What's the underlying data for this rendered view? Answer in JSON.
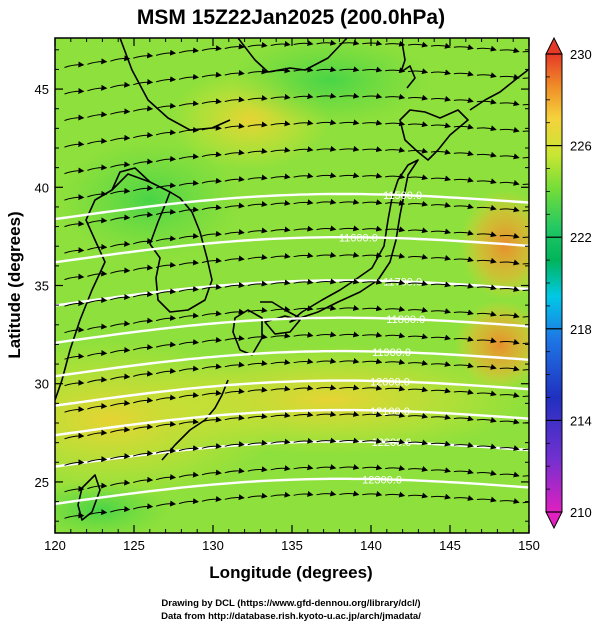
{
  "title": "MSM 15Z22Jan2025 (200.0hPa)",
  "x_axis": {
    "label": "Longitude (degrees)",
    "range": [
      120,
      150
    ],
    "ticks": [
      "120",
      "125",
      "130",
      "135",
      "140",
      "145",
      "150"
    ]
  },
  "y_axis": {
    "label": "Latitude  (degrees)",
    "range": [
      22.4,
      47.6
    ],
    "ticks": [
      "25",
      "30",
      "35",
      "40",
      "45"
    ]
  },
  "colorbar": {
    "range": [
      210,
      230
    ],
    "ticks": [
      "210",
      "214",
      "218",
      "222",
      "226",
      "230"
    ],
    "colors": [
      "#e020c0",
      "#7030d0",
      "#2030c0",
      "#1e78e6",
      "#00c8e6",
      "#00b45a",
      "#22c864",
      "#6edc3a",
      "#c8e632",
      "#f5d23c",
      "#f08c28",
      "#e63a28"
    ]
  },
  "height_contours": [
    {
      "label": "11500.0",
      "lat": 38.8,
      "label_lon": 142.0
    },
    {
      "label": "11600.0",
      "lat": 36.6,
      "label_lon": 139.2
    },
    {
      "label": "11700.0",
      "lat": 34.4,
      "label_lon": 142.0
    },
    {
      "label": "11800.0",
      "lat": 32.5,
      "label_lon": 142.2
    },
    {
      "label": "11900.0",
      "lat": 30.8,
      "label_lon": 141.3
    },
    {
      "label": "12000.0",
      "lat": 29.3,
      "label_lon": 141.2
    },
    {
      "label": "12100.0",
      "lat": 27.8,
      "label_lon": 141.2
    },
    {
      "label": "12200.0",
      "lat": 26.2,
      "label_lon": 141.3
    },
    {
      "label": "12300.0",
      "lat": 24.3,
      "label_lon": 140.7
    }
  ],
  "credits": [
    "Drawing by DCL (https://www.gfd-dennou.org/library/dcl/)",
    "Data from http://database.rish.kyoto-u.ac.jp/arch/jmadata/"
  ],
  "colors": {
    "field_base": "#8ee03c",
    "warm_band": "#e4e232",
    "hot_spot": "#f08c2a",
    "contour": "#ffffff",
    "coast": "#000000"
  }
}
